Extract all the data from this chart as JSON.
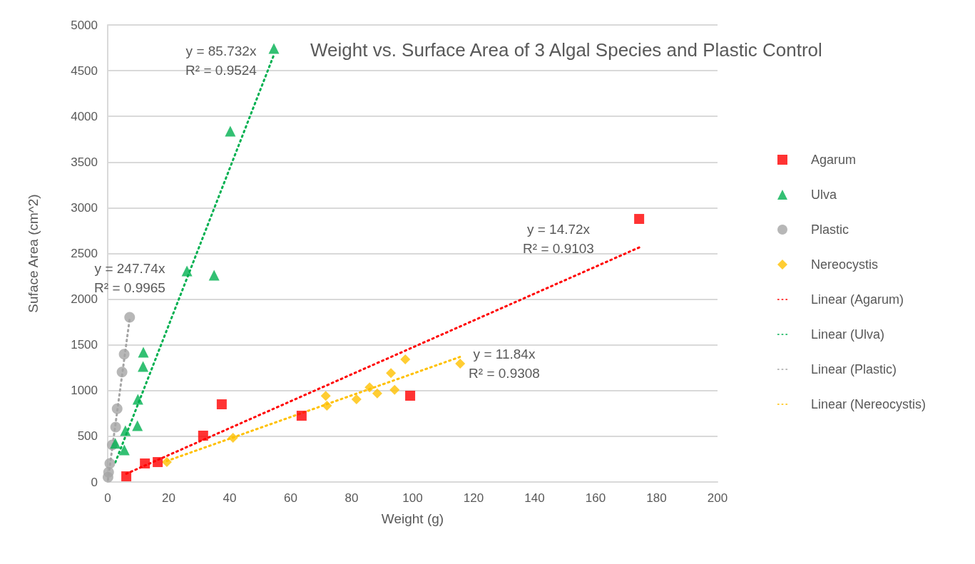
{
  "chart_data": {
    "type": "scatter",
    "title": "Weight vs. Surface Area of 3 Algal Species and Plastic Control",
    "xlabel": "Weight (g)",
    "ylabel": "Suface Area (cm^2)",
    "series": [
      {
        "name": "Agarum",
        "color": "#ff0000",
        "marker": "square",
        "x": [
          6.1,
          12.2,
          16.4,
          31.3,
          37.4,
          63.6,
          99.2,
          174.3
        ],
        "values": [
          62,
          203,
          218,
          507,
          850,
          725,
          944,
          2878
        ]
      },
      {
        "name": "Ulva",
        "color": "#00b050",
        "marker": "triangle",
        "x": [
          2.5,
          5.45,
          5.8,
          9.75,
          9.9,
          11.6,
          11.7,
          26,
          34.9,
          40.2,
          54.5
        ],
        "values": [
          424,
          351,
          562,
          616,
          905,
          1264,
          1420,
          2309,
          2262,
          3838,
          4743
        ]
      },
      {
        "name": "Plastic",
        "color": "#a5a5a5",
        "marker": "circle",
        "x": [
          0.1,
          0.3,
          0.7,
          1.5,
          2.6,
          3.1,
          4.7,
          5.4,
          7.2
        ],
        "values": [
          52,
          107,
          203,
          406,
          600,
          801,
          1204,
          1399,
          1802
        ]
      },
      {
        "name": "Nereocystis",
        "color": "#ffc000",
        "marker": "diamond",
        "x": [
          19.4,
          41.1,
          71.5,
          71.9,
          81.6,
          85.9,
          88.4,
          92.9,
          94.1,
          97.6,
          115.6
        ],
        "values": [
          218,
          484,
          941,
          834,
          905,
          1035,
          970,
          1191,
          1009,
          1342,
          1295
        ]
      },
      {
        "name": "Linear (Agarum)",
        "type": "line",
        "color": "#ff0000",
        "marker": "none",
        "line_style": "dotted",
        "x": [
          6.1,
          174.3
        ],
        "values": [
          90,
          2566
        ]
      },
      {
        "name": "Linear (Ulva)",
        "type": "line",
        "color": "#00b050",
        "marker": "none",
        "line_style": "dotted",
        "x": [
          2.5,
          54.5
        ],
        "values": [
          214,
          4672
        ]
      },
      {
        "name": "Linear (Plastic)",
        "type": "line",
        "color": "#a5a5a5",
        "marker": "none",
        "line_style": "dotted",
        "x": [
          0.1,
          7.2
        ],
        "values": [
          25,
          1784
        ]
      },
      {
        "name": "Linear (Nereocystis)",
        "type": "line",
        "color": "#ffc000",
        "marker": "none",
        "line_style": "dotted",
        "x": [
          19.4,
          115.6
        ],
        "values": [
          230,
          1369
        ]
      }
    ],
    "annotations": [
      "y = 14.72x\nR² = 0.9103",
      "y = 85.732x\nR² = 0.9524",
      "y = 247.74x\nR² = 0.9965",
      "y = 11.84x\nR² = 0.9308"
    ],
    "xlim": [
      0,
      200
    ],
    "xticks": [
      0,
      20,
      40,
      60,
      80,
      100,
      120,
      140,
      160,
      180,
      200
    ],
    "ylim": [
      0,
      5000
    ],
    "yticks": [
      0,
      500,
      1000,
      1500,
      2000,
      2500,
      3000,
      3500,
      4000,
      4500,
      5000
    ],
    "grid": "y",
    "legend": "right"
  }
}
